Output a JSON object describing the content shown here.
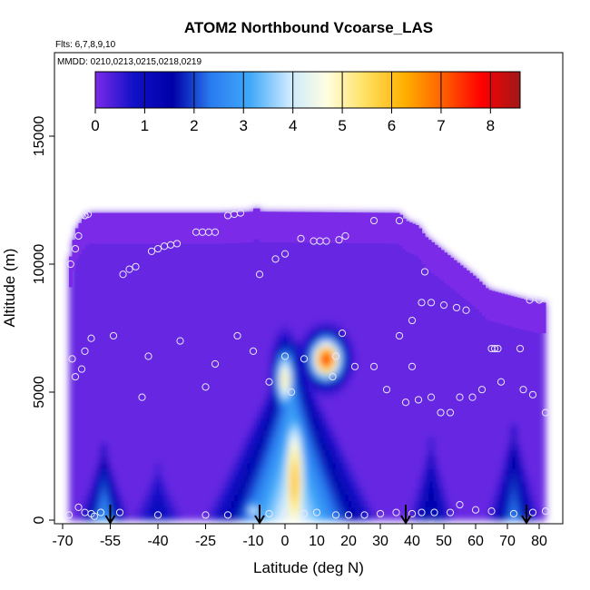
{
  "chart_data": {
    "type": "heatmap",
    "title": "ATOM2 Northbound Vcoarse_LAS",
    "subtitle_flights": "Flts: 6,7,8,9,10",
    "subtitle_dates": "MMDD: 0210,0213,0215,0218,0219",
    "xlabel": "Latitude (deg N)",
    "ylabel": "Altitude (m)",
    "xlim": [
      -70,
      85
    ],
    "ylim": [
      0,
      17500
    ],
    "x_ticks": [
      -70,
      -55,
      -40,
      -25,
      -10,
      0,
      10,
      20,
      30,
      40,
      50,
      60,
      70,
      80
    ],
    "x_tick_labels": [
      "-70",
      "-55",
      "-40",
      "-25",
      "-10",
      "0",
      "10",
      "20",
      "30",
      "40",
      "50",
      "60",
      "70",
      "80"
    ],
    "y_ticks": [
      0,
      5000,
      10000,
      15000
    ],
    "y_tick_labels": [
      "0",
      "5000",
      "10000",
      "15000"
    ],
    "colorbar": {
      "range": [
        0,
        8.6
      ],
      "ticks": [
        0,
        1,
        2,
        3,
        4,
        5,
        6,
        7,
        8
      ],
      "tick_labels": [
        "0",
        "1",
        "2",
        "3",
        "4",
        "5",
        "6",
        "7",
        "8"
      ],
      "colors": [
        "#7b2be8",
        "#1010c8",
        "#0000a8",
        "#2a7cf0",
        "#40a8f8",
        "#c8e8ff",
        "#ffffe0",
        "#ffe060",
        "#ffb000",
        "#ff6000",
        "#ff0000",
        "#a01818"
      ]
    },
    "top_envelope": [
      [
        -68,
        10000
      ],
      [
        -67,
        10600
      ],
      [
        -66,
        11300
      ],
      [
        -64,
        11700
      ],
      [
        -62,
        12000
      ],
      [
        -20,
        12000
      ],
      [
        -10,
        12050
      ],
      [
        -9,
        12300
      ],
      [
        -8,
        12050
      ],
      [
        36,
        12000
      ],
      [
        38,
        11700
      ],
      [
        42,
        11500
      ],
      [
        44,
        11100
      ],
      [
        46,
        10900
      ],
      [
        50,
        10500
      ],
      [
        55,
        10000
      ],
      [
        60,
        9500
      ],
      [
        64,
        9000
      ],
      [
        70,
        8800
      ],
      [
        76,
        8600
      ],
      [
        80,
        8500
      ]
    ],
    "columns": [
      {
        "x0": -68,
        "x1": -50,
        "cx": -57,
        "bottom_value": 3.0,
        "peak_alt": 3000
      },
      {
        "x0": -50,
        "x1": -30,
        "cx": -40,
        "bottom_value": 1.3,
        "peak_alt": 2200
      },
      {
        "x0": -28,
        "x1": 30,
        "cx": 2,
        "bottom_value": 4.6,
        "peak_alt": 7000
      },
      {
        "x0": 38,
        "x1": 55,
        "cx": 46,
        "bottom_value": 1.9,
        "peak_alt": 3200
      },
      {
        "x0": 63,
        "x1": 82,
        "cx": 72,
        "bottom_value": 2.6,
        "peak_alt": 3800
      }
    ],
    "hotspots": [
      {
        "x": 3,
        "alt": 1500,
        "value": 6.0,
        "alt_width": 3000,
        "x_width": 4
      },
      {
        "x": 13,
        "alt": 6300,
        "value": 7.5,
        "alt_width": 800,
        "x_width": 5
      },
      {
        "x": 0,
        "alt": 5500,
        "value": 5.2,
        "alt_width": 1200,
        "x_width": 3
      },
      {
        "x": -10,
        "alt": 400,
        "value": 4.2,
        "alt_width": 400,
        "x_width": 3
      }
    ],
    "sample_points": [
      [
        -68,
        200
      ],
      [
        -65,
        500
      ],
      [
        -63,
        300
      ],
      [
        -61,
        250
      ],
      [
        -60,
        150
      ],
      [
        -67.5,
        10000
      ],
      [
        -66,
        10600
      ],
      [
        -65,
        11100
      ],
      [
        -63,
        11900
      ],
      [
        -62,
        11950
      ],
      [
        -67,
        6300
      ],
      [
        -66,
        5600
      ],
      [
        -64,
        5900
      ],
      [
        -63,
        6600
      ],
      [
        -61,
        7100
      ],
      [
        -54,
        7200
      ],
      [
        -51,
        9600
      ],
      [
        -49,
        9800
      ],
      [
        -47,
        9900
      ],
      [
        -42,
        10500
      ],
      [
        -40,
        10600
      ],
      [
        -38,
        10700
      ],
      [
        -36,
        10750
      ],
      [
        -34,
        10800
      ],
      [
        -28,
        11250
      ],
      [
        -26,
        11250
      ],
      [
        -24,
        11250
      ],
      [
        -22,
        11250
      ],
      [
        -18,
        11900
      ],
      [
        -16,
        11950
      ],
      [
        -14,
        12000
      ],
      [
        -8,
        9600
      ],
      [
        -3,
        10200
      ],
      [
        0,
        10400
      ],
      [
        5,
        11000
      ],
      [
        9,
        10900
      ],
      [
        11,
        10900
      ],
      [
        13,
        10900
      ],
      [
        17,
        10950
      ],
      [
        19,
        11100
      ],
      [
        28,
        11700
      ],
      [
        36,
        11700
      ],
      [
        44,
        9700
      ],
      [
        40,
        7800
      ],
      [
        43,
        8500
      ],
      [
        46,
        8500
      ],
      [
        50,
        8400
      ],
      [
        54,
        8300
      ],
      [
        57,
        8200
      ],
      [
        65,
        6700
      ],
      [
        66,
        6700
      ],
      [
        67,
        6700
      ],
      [
        74,
        6700
      ],
      [
        77,
        8600
      ],
      [
        80,
        8600
      ],
      [
        -43,
        6400
      ],
      [
        -33,
        7000
      ],
      [
        -22,
        6100
      ],
      [
        -15,
        7200
      ],
      [
        -10,
        6600
      ],
      [
        0,
        6400
      ],
      [
        6,
        6300
      ],
      [
        16,
        6400
      ],
      [
        18,
        7300
      ],
      [
        22,
        6000
      ],
      [
        28,
        6000
      ],
      [
        36,
        7200
      ],
      [
        40,
        6000
      ],
      [
        -45,
        4800
      ],
      [
        -25,
        5200
      ],
      [
        -5,
        5400
      ],
      [
        2,
        5000
      ],
      [
        15,
        5600
      ],
      [
        32,
        5100
      ],
      [
        38,
        4600
      ],
      [
        42,
        4700
      ],
      [
        46,
        4800
      ],
      [
        49,
        4200
      ],
      [
        52,
        4200
      ],
      [
        55,
        4800
      ],
      [
        59,
        4800
      ],
      [
        62,
        5100
      ],
      [
        68,
        5400
      ],
      [
        75,
        5100
      ],
      [
        78,
        4900
      ],
      [
        82,
        4200
      ],
      [
        -58,
        300
      ],
      [
        -52,
        300
      ],
      [
        -40,
        200
      ],
      [
        -25,
        200
      ],
      [
        -18,
        200
      ],
      [
        -5,
        250
      ],
      [
        0,
        250
      ],
      [
        6,
        250
      ],
      [
        10,
        300
      ],
      [
        16,
        200
      ],
      [
        20,
        200
      ],
      [
        25,
        200
      ],
      [
        30,
        250
      ],
      [
        35,
        300
      ],
      [
        40,
        250
      ],
      [
        43,
        300
      ],
      [
        47,
        300
      ],
      [
        52,
        300
      ],
      [
        55,
        600
      ],
      [
        60,
        400
      ],
      [
        65,
        350
      ],
      [
        72,
        250
      ],
      [
        78,
        300
      ],
      [
        82,
        350
      ]
    ],
    "arrows_x": [
      -55,
      -8,
      38,
      76
    ]
  }
}
